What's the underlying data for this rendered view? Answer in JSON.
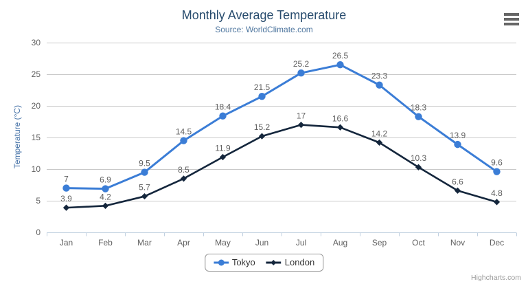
{
  "chart": {
    "title": "Monthly Average Temperature",
    "subtitle": "Source: WorldClimate.com",
    "y_axis_title": "Temperature (°C)",
    "credits": "Highcharts.com",
    "export_menu_icon": "hamburger-icon"
  },
  "chart_data": {
    "type": "line",
    "title": "Monthly Average Temperature",
    "subtitle": "Source: WorldClimate.com",
    "categories": [
      "Jan",
      "Feb",
      "Mar",
      "Apr",
      "May",
      "Jun",
      "Jul",
      "Aug",
      "Sep",
      "Oct",
      "Nov",
      "Dec"
    ],
    "series": [
      {
        "name": "Tokyo",
        "marker": "circle",
        "color": "#3b7dd6",
        "values": [
          7,
          6.9,
          9.5,
          14.5,
          18.4,
          21.5,
          25.2,
          26.5,
          23.3,
          18.3,
          13.9,
          9.6
        ]
      },
      {
        "name": "London",
        "marker": "diamond",
        "color": "#14263c",
        "values": [
          3.9,
          4.2,
          5.7,
          8.5,
          11.9,
          15.2,
          17,
          16.6,
          14.2,
          10.3,
          6.6,
          4.8
        ]
      }
    ],
    "xlabel": "",
    "ylabel": "Temperature (°C)",
    "ylim": [
      0,
      30
    ],
    "ytick_step": 5,
    "grid": true,
    "data_labels": true,
    "legend_position": "bottom-center"
  },
  "colors": {
    "title": "#274b6d",
    "subtitle": "#4d759e",
    "axis_label": "#606060",
    "y_axis_title": "#4572a7",
    "gridline": "#c9c9c9",
    "axis_line": "#c0d0e0",
    "data_label": "#606060",
    "legend_text": "#333333",
    "credits": "#999999"
  }
}
